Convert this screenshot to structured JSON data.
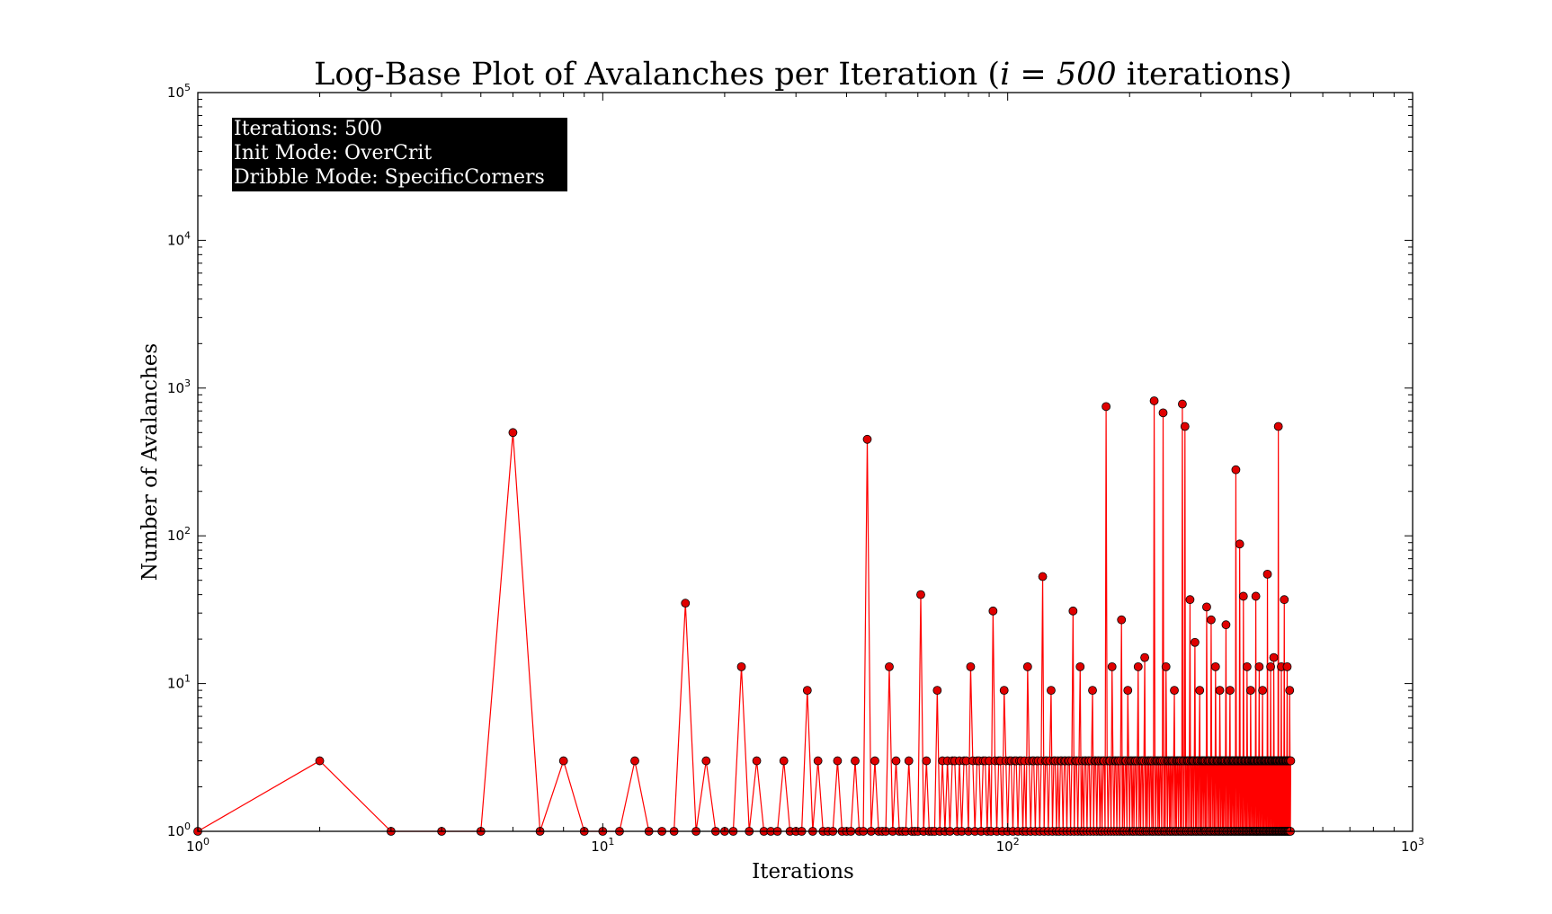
{
  "chart_data": {
    "type": "line",
    "title": "Log-Base Plot of Avalanches per Iteration (i = 500 iterations)",
    "title_parts": {
      "prefix": "Log-Base Plot of Avalanches per Iteration (",
      "math": "i = 500",
      "suffix": " iterations)"
    },
    "xlabel": "Iterations",
    "ylabel": "Number of Avalanches",
    "xscale": "log",
    "yscale": "log",
    "xlim": [
      1,
      1000
    ],
    "ylim": [
      1,
      100000
    ],
    "x_ticks": [
      {
        "base": "10",
        "exp": "0"
      },
      {
        "base": "10",
        "exp": "1"
      },
      {
        "base": "10",
        "exp": "2"
      },
      {
        "base": "10",
        "exp": "3"
      }
    ],
    "y_ticks": [
      {
        "base": "10",
        "exp": "0"
      },
      {
        "base": "10",
        "exp": "1"
      },
      {
        "base": "10",
        "exp": "2"
      },
      {
        "base": "10",
        "exp": "3"
      },
      {
        "base": "10",
        "exp": "4"
      },
      {
        "base": "10",
        "exp": "5"
      }
    ],
    "annotation_box": {
      "lines": [
        "Iterations: 500",
        "Init Mode: OverCrit",
        "Dribble Mode: SpecificCorners"
      ],
      "background": "#000000",
      "text_color": "#ffffff",
      "placement": "top-left"
    },
    "grid": false,
    "legend": "none",
    "series_style": {
      "line_color": "#ff0000",
      "marker_fill": "#e00000",
      "marker_edge": "#000000",
      "marker": "circle"
    },
    "series": [
      {
        "x_range": [
          1,
          500
        ],
        "baseline_values": [
          1,
          3
        ],
        "points": [
          [
            1,
            1
          ],
          [
            2,
            3
          ],
          [
            3,
            1
          ],
          [
            4,
            1
          ],
          [
            5,
            1
          ],
          [
            6,
            500
          ],
          [
            7,
            1
          ],
          [
            8,
            3
          ],
          [
            9,
            1
          ],
          [
            10,
            1
          ],
          [
            11,
            1
          ],
          [
            12,
            3
          ],
          [
            13,
            1
          ],
          [
            14,
            1
          ],
          [
            15,
            1
          ],
          [
            16,
            35
          ],
          [
            17,
            1
          ],
          [
            18,
            3
          ],
          [
            19,
            1
          ],
          [
            20,
            1
          ],
          [
            21,
            1
          ],
          [
            22,
            13
          ],
          [
            23,
            1
          ],
          [
            24,
            3
          ],
          [
            25,
            1
          ],
          [
            26,
            1
          ],
          [
            27,
            1
          ],
          [
            28,
            3
          ],
          [
            29,
            1
          ],
          [
            30,
            1
          ],
          [
            31,
            1
          ],
          [
            32,
            9
          ],
          [
            33,
            1
          ],
          [
            34,
            3
          ],
          [
            35,
            1
          ],
          [
            36,
            1
          ],
          [
            37,
            1
          ],
          [
            38,
            3
          ],
          [
            39,
            1
          ],
          [
            40,
            1
          ],
          [
            41,
            1
          ],
          [
            42,
            3
          ],
          [
            43,
            1
          ],
          [
            44,
            1
          ],
          [
            45,
            450
          ],
          [
            46,
            1
          ],
          [
            47,
            3
          ],
          [
            48,
            1
          ],
          [
            49,
            1
          ],
          [
            50,
            1
          ],
          [
            51,
            13
          ],
          [
            52,
            1
          ],
          [
            53,
            3
          ],
          [
            54,
            1
          ],
          [
            55,
            1
          ],
          [
            56,
            1
          ],
          [
            57,
            3
          ],
          [
            58,
            1
          ],
          [
            59,
            1
          ],
          [
            60,
            1
          ],
          [
            61,
            40
          ],
          [
            62,
            1
          ],
          [
            63,
            3
          ],
          [
            64,
            1
          ],
          [
            65,
            1
          ],
          [
            66,
            1
          ],
          [
            67,
            9
          ],
          [
            68,
            1
          ],
          [
            69,
            3
          ],
          [
            74,
            3
          ],
          [
            78,
            3
          ],
          [
            81,
            13
          ],
          [
            84,
            3
          ],
          [
            88,
            3
          ],
          [
            92,
            31
          ],
          [
            95,
            3
          ],
          [
            98,
            9
          ],
          [
            101,
            3
          ],
          [
            104,
            3
          ],
          [
            108,
            3
          ],
          [
            112,
            13
          ],
          [
            115,
            3
          ],
          [
            118,
            3
          ],
          [
            122,
            53
          ],
          [
            125,
            3
          ],
          [
            128,
            9
          ],
          [
            131,
            3
          ],
          [
            135,
            3
          ],
          [
            138,
            3
          ],
          [
            142,
            3
          ],
          [
            145,
            31
          ],
          [
            148,
            3
          ],
          [
            151,
            13
          ],
          [
            155,
            3
          ],
          [
            158,
            3
          ],
          [
            162,
            9
          ],
          [
            165,
            3
          ],
          [
            168,
            3
          ],
          [
            172,
            3
          ],
          [
            175,
            750
          ],
          [
            178,
            3
          ],
          [
            181,
            13
          ],
          [
            185,
            3
          ],
          [
            188,
            3
          ],
          [
            191,
            27
          ],
          [
            195,
            3
          ],
          [
            198,
            9
          ],
          [
            202,
            3
          ],
          [
            206,
            3
          ],
          [
            210,
            13
          ],
          [
            214,
            3
          ],
          [
            218,
            15
          ],
          [
            222,
            3
          ],
          [
            226,
            3
          ],
          [
            230,
            820
          ],
          [
            234,
            3
          ],
          [
            238,
            3
          ],
          [
            242,
            680
          ],
          [
            246,
            13
          ],
          [
            250,
            3
          ],
          [
            254,
            3
          ],
          [
            258,
            9
          ],
          [
            262,
            3
          ],
          [
            266,
            3
          ],
          [
            270,
            780
          ],
          [
            274,
            550
          ],
          [
            278,
            3
          ],
          [
            282,
            37
          ],
          [
            286,
            3
          ],
          [
            290,
            19
          ],
          [
            294,
            3
          ],
          [
            298,
            9
          ],
          [
            302,
            3
          ],
          [
            306,
            3
          ],
          [
            310,
            33
          ],
          [
            314,
            3
          ],
          [
            318,
            27
          ],
          [
            322,
            3
          ],
          [
            326,
            13
          ],
          [
            330,
            3
          ],
          [
            334,
            9
          ],
          [
            338,
            3
          ],
          [
            342,
            3
          ],
          [
            346,
            25
          ],
          [
            350,
            3
          ],
          [
            354,
            9
          ],
          [
            358,
            3
          ],
          [
            362,
            3
          ],
          [
            366,
            280
          ],
          [
            370,
            3
          ],
          [
            374,
            88
          ],
          [
            378,
            3
          ],
          [
            382,
            39
          ],
          [
            386,
            3
          ],
          [
            390,
            13
          ],
          [
            394,
            3
          ],
          [
            398,
            9
          ],
          [
            402,
            3
          ],
          [
            406,
            3
          ],
          [
            410,
            39
          ],
          [
            414,
            3
          ],
          [
            418,
            13
          ],
          [
            422,
            3
          ],
          [
            426,
            9
          ],
          [
            430,
            3
          ],
          [
            434,
            3
          ],
          [
            438,
            55
          ],
          [
            442,
            3
          ],
          [
            446,
            13
          ],
          [
            450,
            3
          ],
          [
            454,
            15
          ],
          [
            458,
            3
          ],
          [
            462,
            3
          ],
          [
            466,
            550
          ],
          [
            470,
            3
          ],
          [
            474,
            13
          ],
          [
            478,
            3
          ],
          [
            482,
            37
          ],
          [
            486,
            3
          ],
          [
            490,
            13
          ],
          [
            494,
            3
          ],
          [
            497,
            9
          ],
          [
            500,
            3
          ]
        ]
      }
    ]
  }
}
